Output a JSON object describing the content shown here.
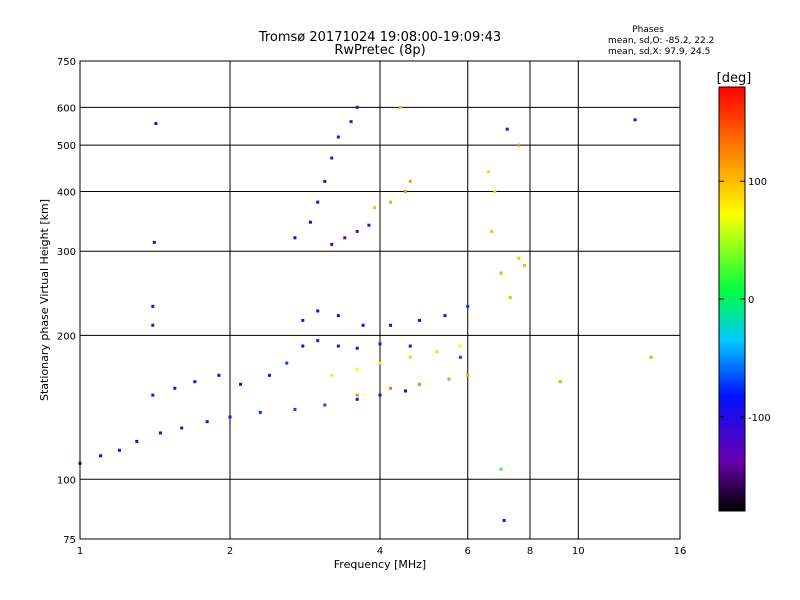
{
  "chart_data": {
    "type": "scatter",
    "title": "Tromsø 20171024 19:08:00-19:09:43",
    "subtitle": "RwPretec (8p)",
    "xlabel": "Frequency [MHz]",
    "ylabel": "Stationary phase Virtual Height [km]",
    "x_scale": "log",
    "y_scale": "log",
    "xlim": [
      1,
      16
    ],
    "ylim": [
      75,
      750
    ],
    "x_ticks": [
      "1",
      "2",
      "4",
      "6",
      "8",
      "10",
      "16"
    ],
    "y_ticks": [
      "75",
      "100",
      "200",
      "300",
      "400",
      "500",
      "600",
      "750"
    ],
    "grid": true,
    "stats_header": "Phases",
    "stats_line_o": "mean, sd,O: -85.2, 22.2",
    "stats_line_x": "mean, sd,X:  97.9, 24.5",
    "colorbar": {
      "label": "[deg]",
      "range": [
        -180,
        180
      ],
      "ticks": [
        "100",
        "0",
        "-100"
      ],
      "colormap": "rainbow",
      "colors": [
        "#000000",
        "#6a00b0",
        "#0010ff",
        "#00c8ff",
        "#00ff40",
        "#ffff00",
        "#ff8000",
        "#ff0000"
      ]
    },
    "series": [
      {
        "points": [
          [
            1.0,
            108,
            -90
          ],
          [
            1.1,
            112,
            -88
          ],
          [
            1.2,
            115,
            -95
          ],
          [
            1.3,
            120,
            -85
          ],
          [
            1.45,
            125,
            -92
          ],
          [
            1.6,
            128,
            -100
          ],
          [
            1.8,
            132,
            -90
          ],
          [
            2.0,
            135,
            -80
          ],
          [
            2.3,
            138,
            -75
          ],
          [
            2.7,
            140,
            -70
          ],
          [
            3.1,
            143,
            -65
          ],
          [
            3.6,
            147,
            -85
          ],
          [
            4.0,
            150,
            -90
          ],
          [
            4.5,
            153,
            -88
          ]
        ]
      },
      {
        "points": [
          [
            1.4,
            150,
            -100
          ],
          [
            1.55,
            155,
            -95
          ],
          [
            1.7,
            160,
            -90
          ],
          [
            1.9,
            165,
            -85
          ],
          [
            2.1,
            158,
            -90
          ],
          [
            2.4,
            165,
            -80
          ],
          [
            2.6,
            175,
            -70
          ],
          [
            2.8,
            190,
            -85
          ],
          [
            3.0,
            195,
            -95
          ],
          [
            3.3,
            190,
            -100
          ],
          [
            3.6,
            188,
            -95
          ],
          [
            4.0,
            192,
            -100
          ],
          [
            4.6,
            190,
            -90
          ],
          [
            5.2,
            185,
            -80
          ],
          [
            5.8,
            180,
            -70
          ]
        ]
      },
      {
        "points": [
          [
            2.8,
            215,
            -90
          ],
          [
            3.0,
            225,
            -95
          ],
          [
            3.3,
            220,
            -100
          ],
          [
            3.7,
            210,
            -85
          ],
          [
            4.2,
            210,
            -90
          ],
          [
            4.8,
            215,
            -88
          ],
          [
            5.4,
            220,
            -80
          ],
          [
            6.0,
            230,
            -75
          ]
        ]
      },
      {
        "points": [
          [
            3.2,
            165,
            60
          ],
          [
            3.6,
            170,
            70
          ],
          [
            4.0,
            175,
            80
          ],
          [
            4.6,
            180,
            90
          ],
          [
            5.2,
            185,
            75
          ],
          [
            5.8,
            190,
            70
          ],
          [
            3.6,
            150,
            120
          ],
          [
            4.2,
            155,
            130
          ],
          [
            4.8,
            158,
            125
          ],
          [
            5.5,
            162,
            120
          ],
          [
            6.0,
            165,
            110
          ]
        ]
      },
      {
        "points": [
          [
            2.7,
            320,
            -90
          ],
          [
            2.9,
            345,
            -80
          ],
          [
            3.0,
            380,
            -95
          ],
          [
            3.1,
            420,
            -105
          ],
          [
            3.2,
            470,
            -110
          ],
          [
            3.3,
            520,
            -115
          ],
          [
            3.5,
            560,
            -110
          ],
          [
            3.6,
            600,
            -120
          ],
          [
            3.2,
            310,
            -130
          ],
          [
            3.4,
            320,
            -140
          ],
          [
            3.6,
            330,
            -135
          ],
          [
            3.8,
            340,
            -125
          ],
          [
            3.9,
            370,
            100
          ],
          [
            4.2,
            380,
            110
          ],
          [
            4.5,
            400,
            120
          ],
          [
            4.4,
            600,
            100
          ],
          [
            4.6,
            420,
            115
          ]
        ]
      },
      {
        "points": [
          [
            6.6,
            440,
            90
          ],
          [
            6.8,
            400,
            85
          ],
          [
            6.7,
            330,
            100
          ],
          [
            7.0,
            270,
            110
          ],
          [
            7.3,
            240,
            105
          ],
          [
            7.6,
            290,
            100
          ],
          [
            7.8,
            280,
            100
          ],
          [
            7.0,
            105,
            20
          ],
          [
            7.1,
            82,
            -110
          ],
          [
            7.2,
            540,
            -100
          ],
          [
            7.6,
            500,
            120
          ],
          [
            9.2,
            160,
            110
          ],
          [
            14.0,
            180,
            110
          ],
          [
            13.0,
            565,
            -100
          ],
          [
            1.42,
            555,
            -100
          ],
          [
            1.4,
            230,
            -110
          ],
          [
            1.4,
            210,
            -110
          ],
          [
            1.41,
            313,
            -90
          ]
        ]
      }
    ]
  }
}
